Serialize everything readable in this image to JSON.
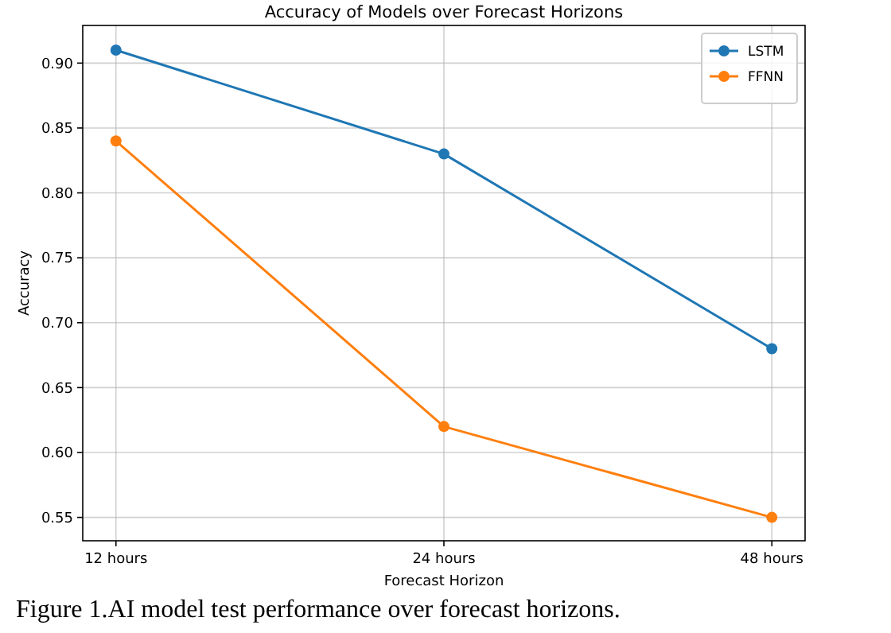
{
  "chart_data": {
    "type": "line",
    "title": "Accuracy of Models over Forecast Horizons",
    "xlabel": "Forecast Horizon",
    "ylabel": "Accuracy",
    "categories": [
      "12 hours",
      "24 hours",
      "48 hours"
    ],
    "series": [
      {
        "name": "LSTM",
        "color": "#1f77b4",
        "values": [
          0.91,
          0.83,
          0.68
        ]
      },
      {
        "name": "FFNN",
        "color": "#ff7f0e",
        "values": [
          0.84,
          0.62,
          0.55
        ]
      }
    ],
    "ylim": [
      0.532,
      0.929
    ],
    "yticks": [
      {
        "value": 0.55,
        "label": "0.55"
      },
      {
        "value": 0.6,
        "label": "0.60"
      },
      {
        "value": 0.65,
        "label": "0.65"
      },
      {
        "value": 0.7,
        "label": "0.70"
      },
      {
        "value": 0.75,
        "label": "0.75"
      },
      {
        "value": 0.8,
        "label": "0.80"
      },
      {
        "value": 0.85,
        "label": "0.85"
      },
      {
        "value": 0.9,
        "label": "0.90"
      }
    ],
    "grid": true,
    "legend": "top right",
    "marker": "circle",
    "line_style": "solid",
    "annotations": [
      "Figure 1.AI model test performance over forecast horizons."
    ]
  }
}
